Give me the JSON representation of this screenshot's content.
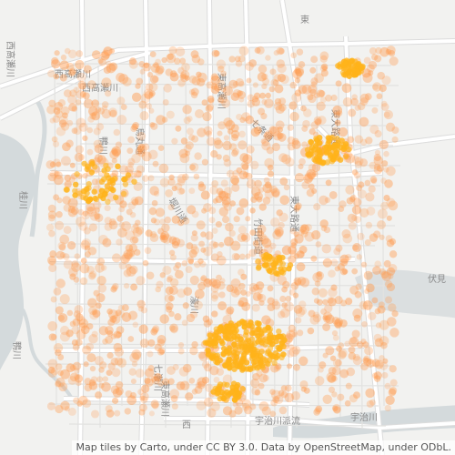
{
  "map": {
    "attribution": "Map tiles by Carto, under CC BY 3.0. Data by OpenStreetMap, under ODbL.",
    "labels": [
      "西高瀬川",
      "西高瀬川",
      "桂川",
      "七条通",
      "烏丸通",
      "堀川通",
      "東高瀬川",
      "東大路通",
      "東大路通",
      "竹田街道",
      "伏見",
      "七瀬川",
      "宇治川",
      "宇治川派流",
      "鴨川",
      "鴨川",
      "東高瀬川",
      "濠川",
      "西高瀬川",
      "西",
      "東"
    ],
    "colors": {
      "background": "#f2f2f0",
      "road": "#ffffff",
      "road_outline": "#dcdcdc",
      "water": "#d4dadc",
      "dot": "#ff9a4d",
      "dot_hot": "#ffb31a"
    }
  }
}
